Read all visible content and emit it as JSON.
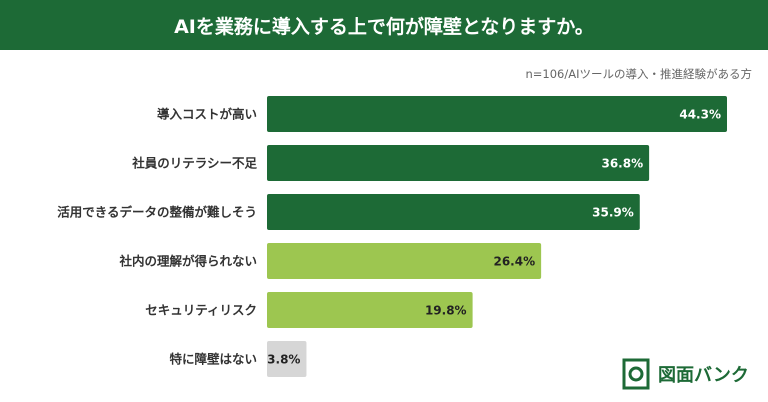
{
  "header": {
    "title": "AIを業務に導入する上で何が障壁となりますか。"
  },
  "note": "n=106/AIツールの導入・推進経験がある方",
  "logo": {
    "text": "図面バンク"
  },
  "colors": {
    "dark": "#1d6a36",
    "light": "#9dc650",
    "none": "#d6d6d6"
  },
  "chart_data": {
    "type": "bar",
    "orientation": "horizontal",
    "title": "AIを業務に導入する上で何が障壁となりますか。",
    "categories": [
      "導入コストが高い",
      "社員のリテラシー不足",
      "活用できるデータの整備が難しそう",
      "社内の理解が得られない",
      "セキュリティリスク",
      "特に障壁はない"
    ],
    "values": [
      44.3,
      36.8,
      35.9,
      26.4,
      19.8,
      3.8
    ],
    "labels": [
      "44.3%",
      "36.8%",
      "35.9%",
      "26.4%",
      "19.8%",
      "3.8%"
    ],
    "groups": [
      "dark",
      "dark",
      "dark",
      "light",
      "light",
      "none"
    ],
    "unit": "%",
    "xlim": [
      0,
      44.3
    ]
  }
}
